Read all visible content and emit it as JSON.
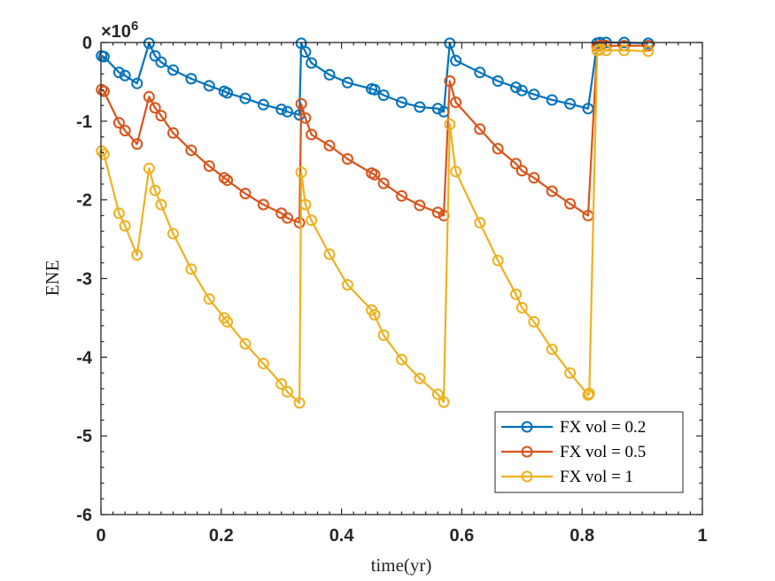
{
  "chart_data": {
    "type": "line",
    "title": "",
    "xlabel": "time(yr)",
    "ylabel": "ENE",
    "xlim": [
      0,
      1
    ],
    "ylim": [
      -6,
      0
    ],
    "xticks": [
      0,
      0.2,
      0.4,
      0.6,
      0.8,
      1
    ],
    "xtick_labels": [
      "0",
      "0.2",
      "0.4",
      "0.6",
      "0.8",
      "1"
    ],
    "yticks": [
      -6,
      -5,
      -4,
      -3,
      -2,
      -1,
      0
    ],
    "ytick_labels": [
      "-6",
      "-5",
      "-4",
      "-3",
      "-2",
      "-1",
      "0"
    ],
    "y_multiplier": {
      "base": "×10",
      "exponent": "6"
    },
    "legend_position": "bottom-right",
    "grid": false,
    "series": [
      {
        "name": "FX vol = 0.2",
        "color": "#0072BD",
        "x": [
          0.001,
          0.005,
          0.03,
          0.04,
          0.06,
          0.08,
          0.09,
          0.1,
          0.12,
          0.15,
          0.18,
          0.205,
          0.21,
          0.24,
          0.27,
          0.3,
          0.31,
          0.33,
          0.333,
          0.34,
          0.35,
          0.38,
          0.41,
          0.45,
          0.455,
          0.47,
          0.5,
          0.53,
          0.56,
          0.57,
          0.58,
          0.59,
          0.63,
          0.66,
          0.69,
          0.7,
          0.72,
          0.75,
          0.78,
          0.81,
          0.825,
          0.83,
          0.84,
          0.87,
          0.91
        ],
        "y": [
          -0.17,
          -0.18,
          -0.38,
          -0.42,
          -0.52,
          -0.01,
          -0.17,
          -0.25,
          -0.35,
          -0.46,
          -0.55,
          -0.62,
          -0.64,
          -0.71,
          -0.79,
          -0.85,
          -0.88,
          -0.92,
          -0.01,
          -0.12,
          -0.26,
          -0.41,
          -0.51,
          -0.59,
          -0.6,
          -0.67,
          -0.76,
          -0.82,
          -0.84,
          -0.88,
          -0.01,
          -0.23,
          -0.38,
          -0.49,
          -0.57,
          -0.61,
          -0.66,
          -0.73,
          -0.78,
          -0.84,
          -0.01,
          -0.0,
          -0.0,
          -0.0,
          -0.01
        ]
      },
      {
        "name": "FX vol = 0.5",
        "color": "#D95319",
        "x": [
          0.001,
          0.005,
          0.03,
          0.04,
          0.06,
          0.08,
          0.09,
          0.1,
          0.12,
          0.15,
          0.18,
          0.205,
          0.21,
          0.24,
          0.27,
          0.3,
          0.31,
          0.33,
          0.333,
          0.34,
          0.35,
          0.38,
          0.41,
          0.45,
          0.455,
          0.47,
          0.5,
          0.53,
          0.56,
          0.57,
          0.58,
          0.59,
          0.63,
          0.66,
          0.69,
          0.7,
          0.72,
          0.75,
          0.78,
          0.81,
          0.825,
          0.83,
          0.84,
          0.87,
          0.91
        ],
        "y": [
          -0.6,
          -0.62,
          -1.02,
          -1.12,
          -1.29,
          -0.69,
          -0.83,
          -0.93,
          -1.15,
          -1.37,
          -1.57,
          -1.72,
          -1.75,
          -1.92,
          -2.06,
          -2.17,
          -2.23,
          -2.29,
          -0.78,
          -0.96,
          -1.17,
          -1.31,
          -1.48,
          -1.66,
          -1.68,
          -1.79,
          -1.95,
          -2.07,
          -2.16,
          -2.2,
          -0.49,
          -0.76,
          -1.1,
          -1.35,
          -1.54,
          -1.63,
          -1.72,
          -1.89,
          -2.05,
          -2.2,
          -0.05,
          -0.04,
          -0.04,
          -0.04,
          -0.04
        ]
      },
      {
        "name": "FX vol = 1",
        "color": "#EDB120",
        "x": [
          0.001,
          0.005,
          0.03,
          0.04,
          0.06,
          0.08,
          0.09,
          0.1,
          0.12,
          0.15,
          0.18,
          0.205,
          0.21,
          0.24,
          0.27,
          0.3,
          0.31,
          0.33,
          0.333,
          0.34,
          0.35,
          0.38,
          0.41,
          0.45,
          0.455,
          0.47,
          0.5,
          0.53,
          0.56,
          0.57,
          0.58,
          0.59,
          0.63,
          0.66,
          0.69,
          0.7,
          0.72,
          0.75,
          0.78,
          0.81,
          0.812,
          0.825,
          0.83,
          0.84,
          0.87,
          0.91
        ],
        "y": [
          -1.38,
          -1.42,
          -2.17,
          -2.33,
          -2.7,
          -1.6,
          -1.88,
          -2.06,
          -2.43,
          -2.88,
          -3.26,
          -3.5,
          -3.55,
          -3.83,
          -4.08,
          -4.34,
          -4.44,
          -4.58,
          -1.65,
          -2.06,
          -2.26,
          -2.69,
          -3.08,
          -3.4,
          -3.46,
          -3.72,
          -4.03,
          -4.27,
          -4.47,
          -4.57,
          -1.04,
          -1.64,
          -2.29,
          -2.77,
          -3.2,
          -3.37,
          -3.55,
          -3.9,
          -4.2,
          -4.48,
          -4.46,
          -0.1,
          -0.09,
          -0.1,
          -0.1,
          -0.11
        ]
      }
    ]
  }
}
